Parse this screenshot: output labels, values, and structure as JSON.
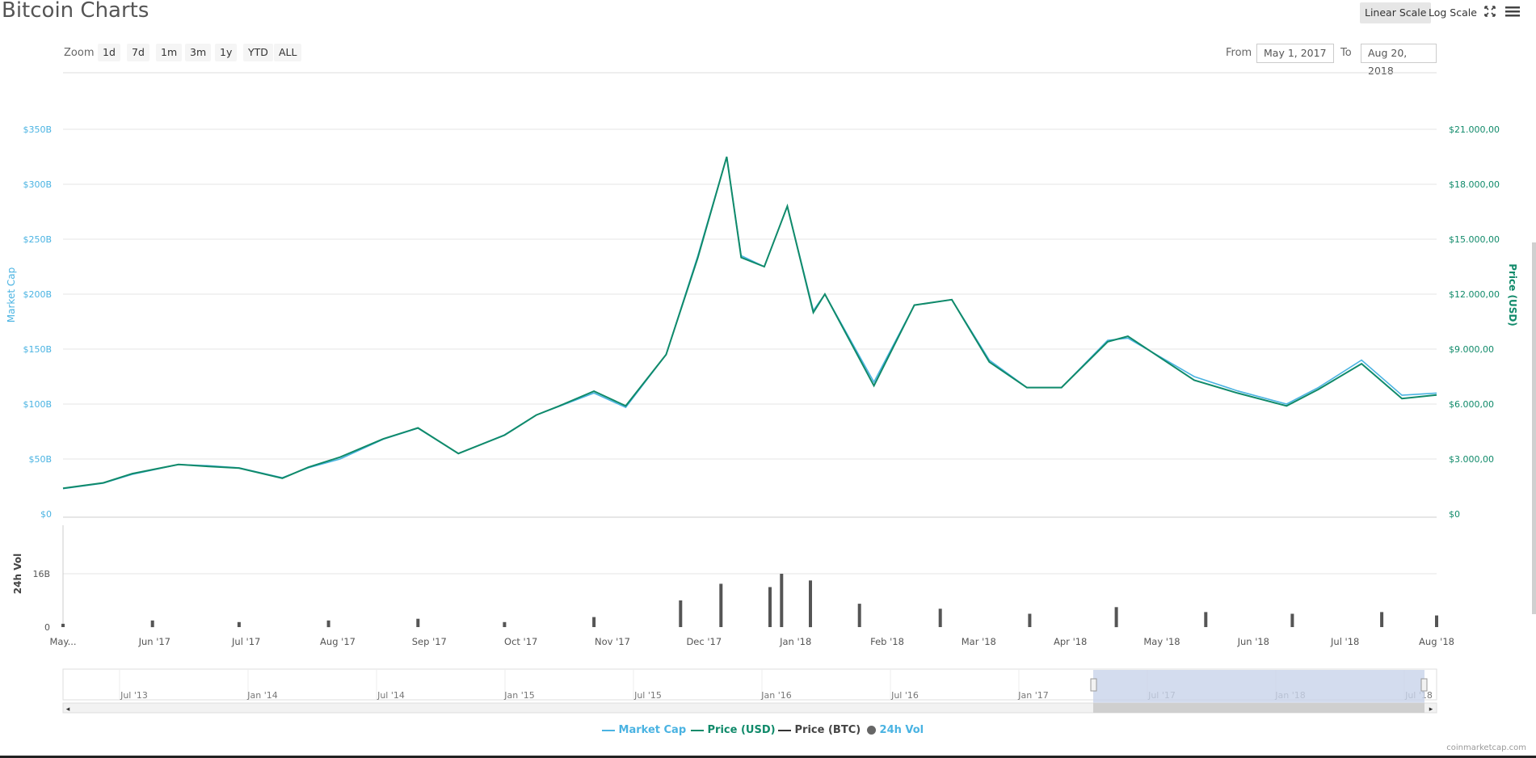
{
  "page": {
    "title": "Bitcoin Charts",
    "credits": "coinmarketcap.com"
  },
  "toolbar": {
    "zoom_label": "Zoom",
    "zoom_buttons": [
      "1d",
      "7d",
      "1m",
      "3m",
      "1y",
      "YTD",
      "ALL"
    ],
    "from_label": "From",
    "from_value": "May 1, 2017",
    "to_label": "To",
    "to_value": "Aug 20, 2018",
    "linear_scale_label": "Linear Scale",
    "log_scale_label": "Log Scale",
    "active_scale": "Linear Scale",
    "fullscreen_icon": "expand-icon",
    "menu_icon": "hamburger-menu-icon"
  },
  "colors": {
    "market_cap": "#4ab3e2",
    "price_usd": "#108a6a",
    "price_btc": "#333333",
    "volume": "#555555",
    "navigator_fill": "#c8d3ea",
    "grid": "#e6e6e6"
  },
  "chart_data": {
    "type": "line",
    "x_range": [
      "2017-05-01",
      "2018-08-20"
    ],
    "y_left": {
      "label": "Market Cap",
      "ticks": [
        "$0",
        "$50B",
        "$100B",
        "$150B",
        "$200B",
        "$250B",
        "$300B",
        "$350B"
      ],
      "range": [
        0,
        350
      ]
    },
    "y_right": {
      "label": "Price (USD)",
      "ticks": [
        "$0",
        "$3.000,00",
        "$6.000,00",
        "$9.000,00",
        "$12.000,00",
        "$15.000,00",
        "$18.000,00",
        "$21.000,00"
      ],
      "range": [
        0,
        21000
      ]
    },
    "x_ticks": [
      "May...",
      "Jun '17",
      "Jul '17",
      "Aug '17",
      "Sep '17",
      "Oct '17",
      "Nov '17",
      "Dec '17",
      "Jan '18",
      "Feb '18",
      "Mar '18",
      "Apr '18",
      "May '18",
      "Jun '18",
      "Jul '18",
      "Aug '18"
    ],
    "series": [
      {
        "name": "Market Cap",
        "unit": "billion USD",
        "points": [
          [
            "2017-05-01",
            23
          ],
          [
            "2017-05-15",
            28
          ],
          [
            "2017-05-25",
            36
          ],
          [
            "2017-06-10",
            45
          ],
          [
            "2017-06-20",
            44
          ],
          [
            "2017-07-01",
            42
          ],
          [
            "2017-07-16",
            33
          ],
          [
            "2017-07-25",
            42
          ],
          [
            "2017-08-05",
            50
          ],
          [
            "2017-08-20",
            68
          ],
          [
            "2017-09-01",
            78
          ],
          [
            "2017-09-15",
            55
          ],
          [
            "2017-10-01",
            72
          ],
          [
            "2017-10-12",
            90
          ],
          [
            "2017-10-20",
            98
          ],
          [
            "2017-11-01",
            110
          ],
          [
            "2017-11-12",
            97
          ],
          [
            "2017-11-26",
            145
          ],
          [
            "2017-12-07",
            235
          ],
          [
            "2017-12-17",
            325
          ],
          [
            "2017-12-22",
            235
          ],
          [
            "2017-12-30",
            225
          ],
          [
            "2018-01-07",
            280
          ],
          [
            "2018-01-16",
            185
          ],
          [
            "2018-01-20",
            200
          ],
          [
            "2018-02-06",
            120
          ],
          [
            "2018-02-20",
            190
          ],
          [
            "2018-03-05",
            195
          ],
          [
            "2018-03-18",
            140
          ],
          [
            "2018-03-31",
            115
          ],
          [
            "2018-04-12",
            115
          ],
          [
            "2018-04-28",
            158
          ],
          [
            "2018-05-05",
            160
          ],
          [
            "2018-05-28",
            125
          ],
          [
            "2018-06-12",
            112
          ],
          [
            "2018-06-29",
            100
          ],
          [
            "2018-07-10",
            115
          ],
          [
            "2018-07-25",
            140
          ],
          [
            "2018-08-08",
            108
          ],
          [
            "2018-08-20",
            110
          ]
        ]
      },
      {
        "name": "Price (USD)",
        "unit": "USD",
        "points": [
          [
            "2017-05-01",
            1400
          ],
          [
            "2017-05-15",
            1700
          ],
          [
            "2017-05-25",
            2200
          ],
          [
            "2017-06-10",
            2700
          ],
          [
            "2017-06-20",
            2600
          ],
          [
            "2017-07-01",
            2500
          ],
          [
            "2017-07-16",
            1950
          ],
          [
            "2017-07-25",
            2550
          ],
          [
            "2017-08-05",
            3100
          ],
          [
            "2017-08-20",
            4100
          ],
          [
            "2017-09-01",
            4700
          ],
          [
            "2017-09-15",
            3300
          ],
          [
            "2017-10-01",
            4300
          ],
          [
            "2017-10-12",
            5400
          ],
          [
            "2017-10-20",
            5900
          ],
          [
            "2017-11-01",
            6700
          ],
          [
            "2017-11-12",
            5900
          ],
          [
            "2017-11-26",
            8700
          ],
          [
            "2017-12-07",
            14000
          ],
          [
            "2017-12-17",
            19500
          ],
          [
            "2017-12-22",
            14000
          ],
          [
            "2017-12-30",
            13500
          ],
          [
            "2018-01-07",
            16800
          ],
          [
            "2018-01-16",
            11000
          ],
          [
            "2018-01-20",
            12000
          ],
          [
            "2018-02-06",
            7000
          ],
          [
            "2018-02-20",
            11400
          ],
          [
            "2018-03-05",
            11700
          ],
          [
            "2018-03-18",
            8300
          ],
          [
            "2018-03-31",
            6900
          ],
          [
            "2018-04-12",
            6900
          ],
          [
            "2018-04-28",
            9400
          ],
          [
            "2018-05-05",
            9700
          ],
          [
            "2018-05-28",
            7300
          ],
          [
            "2018-06-12",
            6600
          ],
          [
            "2018-06-29",
            5900
          ],
          [
            "2018-07-10",
            6800
          ],
          [
            "2018-07-25",
            8200
          ],
          [
            "2018-08-08",
            6300
          ],
          [
            "2018-08-20",
            6500
          ]
        ]
      },
      {
        "name": "24h Vol",
        "unit": "billion USD",
        "y_label": "24h Vol",
        "ticks": [
          "0",
          "16B"
        ],
        "points": [
          [
            "2017-05-01",
            1
          ],
          [
            "2017-06-01",
            2
          ],
          [
            "2017-07-01",
            1.5
          ],
          [
            "2017-08-01",
            2
          ],
          [
            "2017-09-01",
            2.5
          ],
          [
            "2017-10-01",
            1.5
          ],
          [
            "2017-11-01",
            3
          ],
          [
            "2017-12-01",
            8
          ],
          [
            "2017-12-15",
            13
          ],
          [
            "2018-01-01",
            12
          ],
          [
            "2018-01-05",
            16
          ],
          [
            "2018-01-15",
            14
          ],
          [
            "2018-02-01",
            7
          ],
          [
            "2018-03-01",
            5.5
          ],
          [
            "2018-04-01",
            4
          ],
          [
            "2018-05-01",
            6
          ],
          [
            "2018-06-01",
            4.5
          ],
          [
            "2018-07-01",
            4
          ],
          [
            "2018-08-01",
            4.5
          ],
          [
            "2018-08-20",
            3.5
          ]
        ]
      }
    ],
    "navigator": {
      "x_ticks": [
        "Jul '13",
        "Jan '14",
        "Jul '14",
        "Jan '15",
        "Jul '15",
        "Jan '16",
        "Jul '16",
        "Jan '17",
        "Jul '17",
        "Jan '18",
        "Jul '18"
      ],
      "selected_range": [
        "2017-05-01",
        "2018-08-20"
      ]
    },
    "legend": [
      "Market Cap",
      "Price (USD)",
      "Price (BTC)",
      "24h Vol"
    ],
    "grid": true,
    "legend_position": "bottom-center"
  }
}
